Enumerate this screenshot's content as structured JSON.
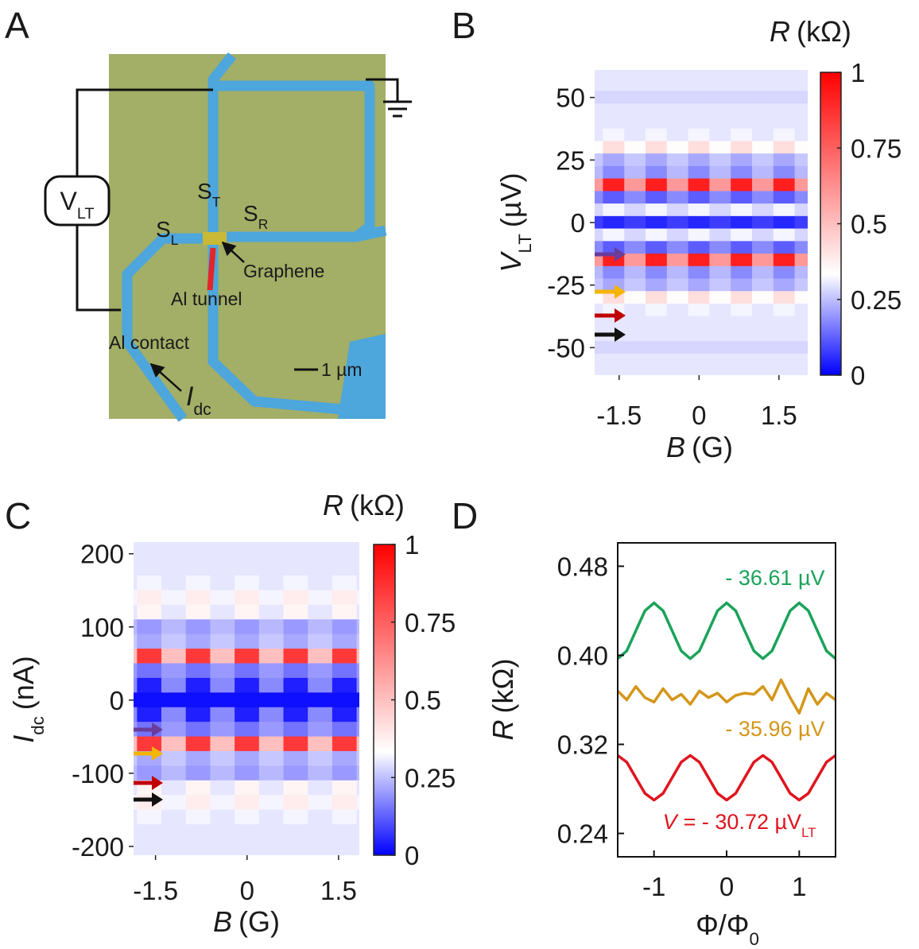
{
  "diagram": {
    "panel_label": "A",
    "voltmeter": {
      "text": "V",
      "sub": "LT"
    },
    "s_top": {
      "text": "S",
      "sub": "T"
    },
    "s_left": {
      "text": "S",
      "sub": "L"
    },
    "s_right": {
      "text": "S",
      "sub": "R"
    },
    "graphene": "Graphene",
    "al_tunnel": "Al tunnel",
    "al_contact": "Al contact",
    "scale_bar": "1 µm",
    "current": {
      "main": "I",
      "sub": "dc"
    }
  },
  "chart_data": [
    {
      "type": "heatmap",
      "panel_label": "B",
      "x": [
        -2.0,
        -1.6,
        -1.2,
        -0.8,
        -0.4,
        0,
        0.4,
        0.8,
        1.2,
        1.6,
        2.0
      ],
      "y": [
        60,
        55,
        50,
        45,
        40,
        35,
        30,
        25,
        20,
        15,
        10,
        5,
        0,
        -5,
        -10,
        -15,
        -20,
        -25,
        -30,
        -35,
        -40,
        -45,
        -50,
        -55,
        -60
      ],
      "z": [
        [
          0.3,
          0.3,
          0.3,
          0.3,
          0.3,
          0.3,
          0.3,
          0.3,
          0.3,
          0.3,
          0.3
        ],
        [
          0.3,
          0.3,
          0.3,
          0.3,
          0.3,
          0.3,
          0.3,
          0.3,
          0.3,
          0.3,
          0.3
        ],
        [
          0.28,
          0.28,
          0.28,
          0.28,
          0.28,
          0.28,
          0.28,
          0.28,
          0.28,
          0.28,
          0.28
        ],
        [
          0.3,
          0.3,
          0.3,
          0.3,
          0.3,
          0.3,
          0.3,
          0.3,
          0.3,
          0.3,
          0.3
        ],
        [
          0.3,
          0.3,
          0.3,
          0.3,
          0.3,
          0.3,
          0.3,
          0.3,
          0.3,
          0.3,
          0.3
        ],
        [
          0.3,
          0.32,
          0.3,
          0.32,
          0.3,
          0.32,
          0.3,
          0.32,
          0.3,
          0.32,
          0.3
        ],
        [
          0.34,
          0.42,
          0.34,
          0.42,
          0.34,
          0.42,
          0.34,
          0.42,
          0.34,
          0.42,
          0.34
        ],
        [
          0.26,
          0.22,
          0.26,
          0.22,
          0.26,
          0.22,
          0.26,
          0.22,
          0.26,
          0.22,
          0.26
        ],
        [
          0.24,
          0.18,
          0.24,
          0.18,
          0.24,
          0.18,
          0.24,
          0.18,
          0.24,
          0.18,
          0.24
        ],
        [
          0.6,
          0.92,
          0.6,
          0.92,
          0.6,
          0.92,
          0.6,
          0.92,
          0.6,
          0.92,
          0.6
        ],
        [
          0.18,
          0.12,
          0.18,
          0.12,
          0.18,
          0.12,
          0.18,
          0.12,
          0.18,
          0.12,
          0.18
        ],
        [
          0.28,
          0.32,
          0.28,
          0.32,
          0.28,
          0.32,
          0.28,
          0.32,
          0.28,
          0.32,
          0.28
        ],
        [
          0.08,
          0.05,
          0.08,
          0.05,
          0.08,
          0.05,
          0.08,
          0.05,
          0.08,
          0.05,
          0.08
        ],
        [
          0.28,
          0.32,
          0.28,
          0.32,
          0.28,
          0.32,
          0.28,
          0.32,
          0.28,
          0.32,
          0.28
        ],
        [
          0.18,
          0.12,
          0.18,
          0.12,
          0.18,
          0.12,
          0.18,
          0.12,
          0.18,
          0.12,
          0.18
        ],
        [
          0.6,
          0.92,
          0.6,
          0.92,
          0.6,
          0.92,
          0.6,
          0.92,
          0.6,
          0.92,
          0.6
        ],
        [
          0.24,
          0.18,
          0.24,
          0.18,
          0.24,
          0.18,
          0.24,
          0.18,
          0.24,
          0.18,
          0.24
        ],
        [
          0.26,
          0.22,
          0.26,
          0.22,
          0.26,
          0.22,
          0.26,
          0.22,
          0.26,
          0.22,
          0.26
        ],
        [
          0.34,
          0.42,
          0.34,
          0.42,
          0.34,
          0.42,
          0.34,
          0.42,
          0.34,
          0.42,
          0.34
        ],
        [
          0.3,
          0.32,
          0.3,
          0.32,
          0.3,
          0.32,
          0.3,
          0.32,
          0.3,
          0.32,
          0.3
        ],
        [
          0.3,
          0.3,
          0.3,
          0.3,
          0.3,
          0.3,
          0.3,
          0.3,
          0.3,
          0.3,
          0.3
        ],
        [
          0.3,
          0.3,
          0.3,
          0.3,
          0.3,
          0.3,
          0.3,
          0.3,
          0.3,
          0.3,
          0.3
        ],
        [
          0.28,
          0.28,
          0.28,
          0.28,
          0.28,
          0.28,
          0.28,
          0.28,
          0.28,
          0.28,
          0.28
        ],
        [
          0.3,
          0.3,
          0.3,
          0.3,
          0.3,
          0.3,
          0.3,
          0.3,
          0.3,
          0.3,
          0.3
        ],
        [
          0.3,
          0.3,
          0.3,
          0.3,
          0.3,
          0.3,
          0.3,
          0.3,
          0.3,
          0.3,
          0.3
        ]
      ],
      "xlim": [
        -1.96,
        2.04
      ],
      "ylim": [
        -61,
        61
      ],
      "xticks": [
        -1.5,
        0,
        1.5
      ],
      "yticks": [
        50,
        25,
        0,
        -25,
        -50
      ],
      "xlabel": {
        "main": "B",
        "unit": "(G)"
      },
      "ylabel": {
        "main": "V",
        "sub": "LT",
        "unit": "(µV)"
      },
      "colormap": [
        "#0000ff",
        "#ffffff",
        "#ff0000"
      ],
      "colorbar": {
        "title": {
          "main": "R",
          "unit": "(kΩ)"
        },
        "lim": [
          0,
          1
        ],
        "ticks": [
          0,
          0.25,
          0.5,
          0.75,
          1
        ]
      }
    },
    {
      "type": "heatmap",
      "panel_label": "C",
      "x": [
        -2.0,
        -1.6,
        -1.2,
        -0.8,
        -0.4,
        0,
        0.4,
        0.8,
        1.2,
        1.6,
        2.0
      ],
      "y": [
        220,
        200,
        180,
        160,
        140,
        120,
        100,
        80,
        60,
        40,
        20,
        0,
        -20,
        -40,
        -60,
        -80,
        -100,
        -120,
        -140,
        -160,
        -180,
        -200,
        -220
      ],
      "z": [
        [
          0.3,
          0.3,
          0.3,
          0.3,
          0.3,
          0.3,
          0.3,
          0.3,
          0.3,
          0.3,
          0.3
        ],
        [
          0.3,
          0.3,
          0.3,
          0.3,
          0.3,
          0.3,
          0.3,
          0.3,
          0.3,
          0.3,
          0.3
        ],
        [
          0.3,
          0.3,
          0.3,
          0.3,
          0.3,
          0.3,
          0.3,
          0.3,
          0.3,
          0.3,
          0.3
        ],
        [
          0.3,
          0.32,
          0.3,
          0.32,
          0.3,
          0.32,
          0.3,
          0.32,
          0.3,
          0.32,
          0.3
        ],
        [
          0.32,
          0.38,
          0.32,
          0.38,
          0.32,
          0.38,
          0.32,
          0.38,
          0.32,
          0.38,
          0.32
        ],
        [
          0.3,
          0.36,
          0.3,
          0.36,
          0.3,
          0.36,
          0.3,
          0.36,
          0.3,
          0.36,
          0.3
        ],
        [
          0.24,
          0.2,
          0.24,
          0.2,
          0.24,
          0.2,
          0.24,
          0.2,
          0.24,
          0.2,
          0.24
        ],
        [
          0.26,
          0.22,
          0.26,
          0.22,
          0.26,
          0.22,
          0.26,
          0.22,
          0.26,
          0.22,
          0.26
        ],
        [
          0.5,
          0.85,
          0.5,
          0.85,
          0.5,
          0.85,
          0.5,
          0.85,
          0.5,
          0.85,
          0.5
        ],
        [
          0.2,
          0.15,
          0.2,
          0.15,
          0.2,
          0.15,
          0.2,
          0.15,
          0.2,
          0.15,
          0.2
        ],
        [
          0.18,
          0.04,
          0.18,
          0.04,
          0.18,
          0.04,
          0.18,
          0.04,
          0.18,
          0.04,
          0.18
        ],
        [
          0.02,
          0.02,
          0.02,
          0.02,
          0.02,
          0.02,
          0.02,
          0.02,
          0.02,
          0.02,
          0.02
        ],
        [
          0.18,
          0.04,
          0.18,
          0.04,
          0.18,
          0.04,
          0.18,
          0.04,
          0.18,
          0.04,
          0.18
        ],
        [
          0.2,
          0.15,
          0.2,
          0.15,
          0.2,
          0.15,
          0.2,
          0.15,
          0.2,
          0.15,
          0.2
        ],
        [
          0.5,
          0.85,
          0.5,
          0.85,
          0.5,
          0.85,
          0.5,
          0.85,
          0.5,
          0.85,
          0.5
        ],
        [
          0.26,
          0.22,
          0.26,
          0.22,
          0.26,
          0.22,
          0.26,
          0.22,
          0.26,
          0.22,
          0.26
        ],
        [
          0.24,
          0.2,
          0.24,
          0.2,
          0.24,
          0.2,
          0.24,
          0.2,
          0.24,
          0.2,
          0.24
        ],
        [
          0.3,
          0.36,
          0.3,
          0.36,
          0.3,
          0.36,
          0.3,
          0.36,
          0.3,
          0.36,
          0.3
        ],
        [
          0.32,
          0.38,
          0.32,
          0.38,
          0.32,
          0.38,
          0.32,
          0.38,
          0.32,
          0.38,
          0.32
        ],
        [
          0.3,
          0.32,
          0.3,
          0.32,
          0.3,
          0.32,
          0.3,
          0.32,
          0.3,
          0.32,
          0.3
        ],
        [
          0.3,
          0.3,
          0.3,
          0.3,
          0.3,
          0.3,
          0.3,
          0.3,
          0.3,
          0.3,
          0.3
        ],
        [
          0.3,
          0.3,
          0.3,
          0.3,
          0.3,
          0.3,
          0.3,
          0.3,
          0.3,
          0.3,
          0.3
        ],
        [
          0.3,
          0.3,
          0.3,
          0.3,
          0.3,
          0.3,
          0.3,
          0.3,
          0.3,
          0.3,
          0.3
        ]
      ],
      "xlim": [
        -1.86,
        1.84
      ],
      "ylim": [
        -212,
        216
      ],
      "xticks": [
        -1.5,
        0,
        1.5
      ],
      "yticks": [
        200,
        100,
        0,
        -100,
        -200
      ],
      "xlabel": {
        "main": "B",
        "unit": "(G)"
      },
      "ylabel": {
        "main": "I",
        "sub": "dc",
        "unit": "(nA)"
      },
      "colormap": [
        "#0000ff",
        "#ffffff",
        "#ff0000"
      ],
      "colorbar": {
        "title": {
          "main": "R",
          "unit": "(kΩ)"
        },
        "lim": [
          0,
          1
        ],
        "ticks": [
          0,
          0.25,
          0.5,
          0.75,
          1
        ]
      }
    },
    {
      "type": "line",
      "panel_label": "D",
      "x": [
        -1.5,
        -1.375,
        -1.25,
        -1.125,
        -1,
        -0.875,
        -0.75,
        -0.625,
        -0.5,
        -0.375,
        -0.25,
        -0.125,
        0,
        0.125,
        0.25,
        0.375,
        0.5,
        0.625,
        0.75,
        0.875,
        1,
        1.125,
        1.25,
        1.375,
        1.5
      ],
      "series": [
        {
          "name": "- 36.61 µV",
          "color": "#1aa35a",
          "values": [
            0.397,
            0.404,
            0.422,
            0.44,
            0.447,
            0.44,
            0.422,
            0.404,
            0.397,
            0.404,
            0.422,
            0.44,
            0.447,
            0.44,
            0.422,
            0.404,
            0.397,
            0.404,
            0.422,
            0.44,
            0.447,
            0.44,
            0.422,
            0.404,
            0.397
          ]
        },
        {
          "name": "- 35.96 µV",
          "color": "#d4961a",
          "values": [
            0.368,
            0.36,
            0.372,
            0.362,
            0.358,
            0.37,
            0.36,
            0.365,
            0.356,
            0.368,
            0.362,
            0.366,
            0.358,
            0.364,
            0.366,
            0.365,
            0.372,
            0.36,
            0.378,
            0.362,
            0.348,
            0.37,
            0.356,
            0.366,
            0.36
          ]
        },
        {
          "name": {
            "main": "V",
            "sub": "LT",
            "text": "= - 30.72 µV"
          },
          "color": "#e0141e",
          "values": [
            0.31,
            0.304,
            0.29,
            0.276,
            0.27,
            0.276,
            0.29,
            0.304,
            0.31,
            0.304,
            0.29,
            0.276,
            0.27,
            0.276,
            0.29,
            0.304,
            0.31,
            0.304,
            0.29,
            0.276,
            0.27,
            0.276,
            0.29,
            0.304,
            0.31
          ]
        }
      ],
      "xlim": [
        -1.5,
        1.5
      ],
      "ylim": [
        0.219,
        0.501
      ],
      "xticks": [
        -1,
        0,
        1
      ],
      "yticks": [
        0.24,
        0.32,
        {
          "value": 0.4,
          "label": "0.40"
        },
        0.48
      ],
      "xlabel": {
        "text": "Φ/Φ",
        "sub": "0"
      },
      "ylabel": {
        "main": "R",
        "unit": "(kΩ)"
      }
    }
  ]
}
